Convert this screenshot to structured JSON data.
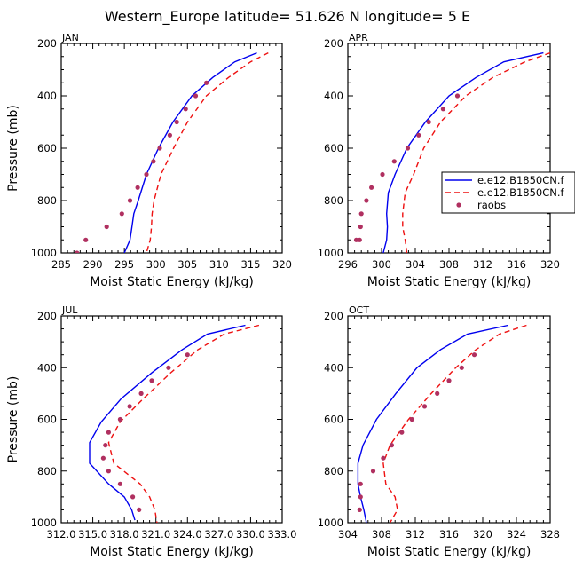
{
  "title": "Western_Europe  latitude= 51.626 N longitude= 5 E",
  "series_styles": [
    {
      "name": "e.e12.B1850CN.f",
      "color": "#0000ee",
      "dash": "",
      "marker": "line"
    },
    {
      "name": "e.e12.B1850CN.f",
      "color": "#ee1111",
      "dash": "6,4",
      "marker": "line"
    },
    {
      "name": "raobs",
      "color": "#b03060",
      "dash": "",
      "marker": "dot"
    }
  ],
  "chart_data": [
    {
      "type": "line",
      "label": "JAN",
      "xlabel": "Moist Static Energy (kJ/kg)",
      "ylabel": "Pressure (mb)",
      "xlim": [
        285,
        320
      ],
      "ylim": [
        1000,
        200
      ],
      "xticks": [
        285,
        290,
        295,
        300,
        305,
        310,
        315,
        320
      ],
      "xtick_labels": [
        "285",
        "290",
        "295",
        "300",
        "305",
        "310",
        "315",
        "320"
      ],
      "yticks": [
        200,
        400,
        600,
        800,
        1000
      ],
      "ytick_labels": [
        "200",
        "400",
        "600",
        "800",
        "1000"
      ],
      "legend": null,
      "series": [
        {
          "name": "e.e12.B1850CN.f",
          "x": [
            316.0,
            312.5,
            309.0,
            305.7,
            302.7,
            300.4,
            298.5,
            297.2,
            296.5,
            296.2,
            295.9,
            295.0
          ],
          "y": [
            236,
            270,
            330,
            400,
            500,
            600,
            700,
            800,
            850,
            900,
            950,
            1000
          ]
        },
        {
          "name": "e.e12.B1850CN.f",
          "x": [
            317.8,
            315.0,
            311.5,
            308.0,
            305.0,
            302.8,
            300.8,
            299.7,
            299.4,
            299.3,
            299.1,
            298.5
          ],
          "y": [
            236,
            270,
            330,
            400,
            500,
            600,
            700,
            800,
            850,
            900,
            950,
            1000
          ]
        },
        {
          "name": "raobs",
          "x": [
            308.0,
            306.3,
            304.7,
            303.3,
            302.2,
            300.6,
            299.6,
            298.5,
            297.1,
            295.9,
            294.6,
            292.2,
            288.9,
            287.5
          ],
          "y": [
            350,
            400,
            450,
            500,
            550,
            600,
            650,
            700,
            750,
            800,
            850,
            900,
            950,
            1000
          ]
        }
      ]
    },
    {
      "type": "line",
      "label": "APR",
      "xlabel": "Moist Static Energy (kJ/kg)",
      "ylabel": "Pressure (mb)",
      "xlim": [
        296,
        320
      ],
      "ylim": [
        1000,
        200
      ],
      "xticks": [
        296,
        300,
        304,
        308,
        312,
        316,
        320
      ],
      "xtick_labels": [
        "296",
        "300",
        "304",
        "308",
        "312",
        "316",
        "320"
      ],
      "yticks": [
        200,
        400,
        600,
        800,
        1000
      ],
      "ytick_labels": [
        "200",
        "400",
        "600",
        "800",
        "1000"
      ],
      "legend": [
        "e.e12.B1850CN.f",
        "e.e12.B1850CN.f",
        "raobs"
      ],
      "series": [
        {
          "name": "e.e12.B1850CN.f",
          "x": [
            319.2,
            314.5,
            311.2,
            308.0,
            305.2,
            303.0,
            301.6,
            300.8,
            300.6,
            300.7,
            300.6,
            300.2
          ],
          "y": [
            236,
            270,
            330,
            400,
            500,
            600,
            700,
            770,
            850,
            900,
            950,
            1000
          ]
        },
        {
          "name": "e.e12.B1850CN.f",
          "x": [
            320.0,
            317.0,
            313.2,
            310.0,
            307.0,
            305.0,
            303.8,
            302.8,
            302.5,
            302.5,
            302.8,
            303.0
          ],
          "y": [
            236,
            270,
            330,
            400,
            500,
            600,
            700,
            770,
            850,
            900,
            950,
            1000
          ]
        },
        {
          "name": "raobs",
          "x": [
            309.0,
            307.3,
            305.6,
            304.4,
            303.1,
            301.5,
            300.1,
            298.8,
            298.2,
            297.6,
            297.5,
            297.4,
            297.0
          ],
          "y": [
            400,
            450,
            500,
            550,
            600,
            650,
            700,
            750,
            800,
            850,
            900,
            950,
            950
          ]
        }
      ]
    },
    {
      "type": "line",
      "label": "JUL",
      "xlabel": "Moist Static Energy (kJ/kg)",
      "ylabel": "Pressure (mb)",
      "xlim": [
        312.0,
        333.0
      ],
      "ylim": [
        1000,
        200
      ],
      "xticks": [
        312.0,
        315.0,
        318.0,
        321.0,
        324.0,
        327.0,
        330.0,
        333.0
      ],
      "xtick_labels": [
        "312.0",
        "315.0",
        "318.0",
        "321.0",
        "324.0",
        "327.0",
        "330.0",
        "333.0"
      ],
      "yticks": [
        200,
        400,
        600,
        800,
        1000
      ],
      "ytick_labels": [
        "200",
        "400",
        "600",
        "800",
        "1000"
      ],
      "legend": null,
      "series": [
        {
          "name": "e.e12.B1850CN.f",
          "x": [
            329.5,
            325.9,
            323.5,
            320.6,
            317.7,
            315.8,
            314.7,
            314.7,
            316.5,
            318.0,
            318.7,
            319.0
          ],
          "y": [
            236,
            270,
            330,
            420,
            520,
            610,
            690,
            770,
            850,
            900,
            950,
            990
          ]
        },
        {
          "name": "e.e12.B1850CN.f",
          "x": [
            330.8,
            327.5,
            325.0,
            322.4,
            319.8,
            317.6,
            316.5,
            317.0,
            319.5,
            320.4,
            320.9,
            321.1
          ],
          "y": [
            236,
            270,
            330,
            420,
            520,
            610,
            690,
            770,
            850,
            900,
            950,
            1000
          ]
        },
        {
          "name": "raobs",
          "x": [
            324.0,
            322.2,
            320.6,
            319.6,
            318.5,
            317.6,
            316.5,
            316.2,
            316.0,
            316.5,
            317.6,
            318.8,
            319.4
          ],
          "y": [
            350,
            400,
            450,
            500,
            550,
            600,
            650,
            700,
            750,
            800,
            850,
            900,
            950
          ]
        }
      ]
    },
    {
      "type": "line",
      "label": "OCT",
      "xlabel": "Moist Static Energy (kJ/kg)",
      "ylabel": "Pressure (mb)",
      "xlim": [
        304,
        328
      ],
      "ylim": [
        1000,
        200
      ],
      "xticks": [
        304,
        308,
        312,
        316,
        320,
        324,
        328
      ],
      "xtick_labels": [
        "304",
        "308",
        "312",
        "316",
        "320",
        "324",
        "328"
      ],
      "yticks": [
        200,
        400,
        600,
        800,
        1000
      ],
      "ytick_labels": [
        "200",
        "400",
        "600",
        "800",
        "1000"
      ],
      "legend": null,
      "series": [
        {
          "name": "e.e12.B1850CN.f",
          "x": [
            323.0,
            318.2,
            315.0,
            312.2,
            309.7,
            307.4,
            305.8,
            305.2,
            305.2,
            305.5,
            305.9,
            306.2
          ],
          "y": [
            236,
            270,
            330,
            400,
            500,
            600,
            700,
            770,
            850,
            900,
            950,
            1000
          ]
        },
        {
          "name": "e.e12.B1850CN.f",
          "x": [
            325.2,
            322.0,
            319.2,
            316.8,
            313.9,
            311.2,
            309.0,
            308.2,
            308.5,
            309.6,
            309.9,
            309.0
          ],
          "y": [
            236,
            270,
            330,
            400,
            500,
            600,
            700,
            770,
            850,
            900,
            950,
            1000
          ]
        },
        {
          "name": "raobs",
          "x": [
            319.0,
            317.5,
            316.0,
            314.6,
            313.1,
            311.6,
            310.4,
            309.2,
            308.2,
            307.0,
            305.5,
            305.5,
            305.4
          ],
          "y": [
            350,
            400,
            450,
            500,
            550,
            600,
            650,
            700,
            750,
            800,
            850,
            900,
            950
          ]
        }
      ]
    }
  ]
}
